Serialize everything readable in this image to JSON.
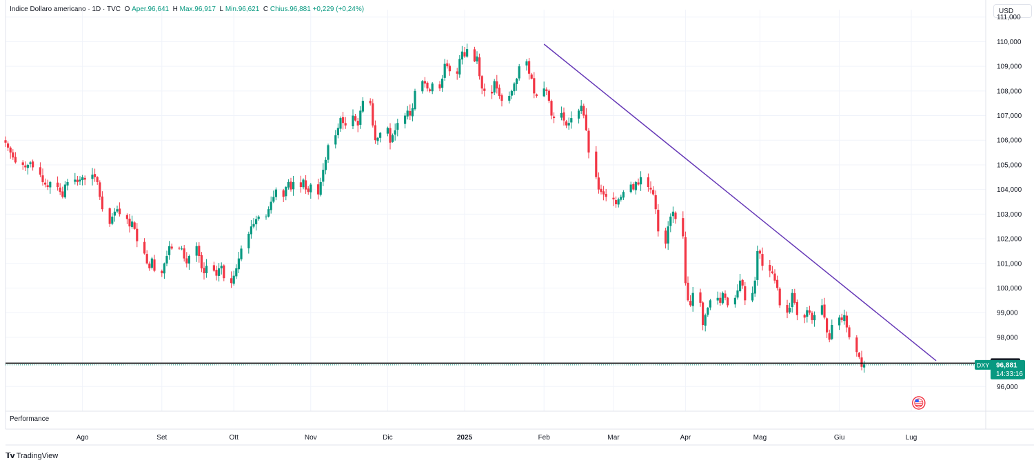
{
  "legend": {
    "symbol": "Indice Dollaro americano · 1D · TVC",
    "o_label": "O",
    "open": "Aper.96,641",
    "h_label": "H",
    "high": "Max.96,917",
    "l_label": "L",
    "low": "Min.96,621",
    "c_label": "C",
    "close": "Chius.96,881",
    "change": "+0,229 (+0,24%)"
  },
  "currency": "USD",
  "performance_label": "Performance",
  "branding": "TradingView",
  "price_badges": {
    "level_label": "97,000",
    "symbol_tag": "DXY",
    "last_price": "96,881",
    "countdown": "14:33:16"
  },
  "colors": {
    "up": "#089981",
    "down": "#f23645",
    "trendline": "#673ab7",
    "level_line": "#000000",
    "grid": "#f0f3fa"
  },
  "chart_data": {
    "type": "candlestick",
    "title": "Indice Dollaro americano",
    "interval": "1D",
    "source": "TVC",
    "ylim": [
      95.0,
      111.3
    ],
    "yticks": [
      "111,000",
      "110,000",
      "109,000",
      "108,000",
      "107,000",
      "106,000",
      "105,000",
      "104,000",
      "103,000",
      "102,000",
      "101,000",
      "100,000",
      "99,000",
      "98,000",
      "97,000",
      "96,000"
    ],
    "xticks": [
      {
        "label": "Ago",
        "date": "2024-08-01"
      },
      {
        "label": "Set",
        "date": "2024-09-02"
      },
      {
        "label": "Ott",
        "date": "2024-10-01"
      },
      {
        "label": "Nov",
        "date": "2024-11-01"
      },
      {
        "label": "Dic",
        "date": "2024-12-02"
      },
      {
        "label": "2025",
        "date": "2025-01-02"
      },
      {
        "label": "Feb",
        "date": "2025-02-03"
      },
      {
        "label": "Mar",
        "date": "2025-03-03"
      },
      {
        "label": "Apr",
        "date": "2025-04-01"
      },
      {
        "label": "Mag",
        "date": "2025-05-01"
      },
      {
        "label": "Giu",
        "date": "2025-06-02"
      },
      {
        "label": "Lug",
        "date": "2025-07-01"
      }
    ],
    "start_date": "2024-07-01",
    "end_date": "2025-07-31",
    "horizontal_line": 96.95,
    "trendline": {
      "start": {
        "date": "2025-02-03",
        "value": 109.9
      },
      "end": {
        "date": "2025-07-11",
        "value": 97.05
      }
    },
    "ohlc": {
      "open": 96.641,
      "high": 96.917,
      "low": 96.621,
      "close": 96.881
    },
    "closes": [
      105.9,
      105.7,
      105.5,
      105.3,
      105.1,
      105.0,
      104.9,
      105.0,
      105.1,
      104.9,
      104.6,
      104.3,
      104.2,
      104.1,
      104.3,
      104.1,
      103.9,
      103.7,
      104.2,
      104.3,
      104.4,
      104.3,
      104.4,
      104.5,
      104.4,
      104.6,
      104.5,
      104.3,
      103.7,
      103.2,
      102.6,
      102.9,
      103.1,
      103.2,
      103.0,
      102.8,
      102.5,
      102.7,
      102.4,
      101.9,
      101.4,
      101.0,
      100.8,
      101.2,
      100.7,
      100.6,
      101.0,
      101.3,
      101.7,
      101.6,
      101.6,
      101.6,
      101.2,
      101.0,
      101.3,
      101.7,
      101.3,
      100.8,
      100.6,
      100.9,
      100.7,
      100.5,
      100.8,
      100.9,
      100.4,
      100.2,
      100.5,
      100.8,
      101.2,
      101.6,
      102.2,
      102.5,
      102.6,
      102.8,
      102.9,
      102.9,
      103.2,
      103.5,
      103.7,
      104.0,
      103.7,
      104.1,
      104.3,
      104.0,
      104.3,
      104.1,
      104.4,
      104.0,
      103.9,
      104.2,
      103.8,
      104.3,
      104.8,
      105.2,
      105.8,
      106.2,
      106.5,
      106.9,
      106.7,
      106.6,
      107.0,
      106.8,
      106.6,
      107.2,
      107.6,
      107.5,
      106.6,
      106.0,
      106.1,
      106.3,
      106.5,
      105.9,
      106.2,
      106.4,
      106.7,
      107.0,
      107.2,
      107.0,
      107.3,
      108.0,
      108.4,
      108.3,
      108.1,
      108.0,
      108.3,
      108.1,
      108.5,
      109.1,
      109.0,
      108.8,
      108.7,
      109.3,
      109.6,
      109.4,
      109.7,
      109.2,
      109.4,
      108.6,
      108.1,
      108.0,
      107.9,
      108.4,
      108.1,
      107.8,
      107.6,
      107.8,
      108.0,
      108.3,
      108.5,
      109.0,
      109.2,
      108.7,
      108.5,
      107.9,
      107.8,
      108.1,
      108.0,
      107.6,
      107.0,
      106.9,
      107.1,
      106.8,
      106.6,
      106.7,
      106.9,
      107.2,
      107.4,
      107.0,
      106.4,
      105.5,
      104.5,
      104.0,
      103.9,
      103.8,
      103.7,
      103.6,
      103.4,
      103.6,
      103.7,
      103.9,
      104.2,
      104.0,
      104.3,
      104.2,
      104.5,
      104.1,
      104.0,
      103.8,
      103.2,
      102.3,
      101.8,
      102.5,
      102.9,
      103.1,
      102.8,
      102.1,
      100.2,
      99.5,
      99.3,
      99.8,
      99.4,
      98.5,
      98.9,
      99.2,
      99.5,
      99.6,
      99.4,
      99.8,
      99.6,
      99.3,
      99.6,
      99.9,
      100.3,
      100.1,
      99.5,
      99.8,
      100.3,
      101.5,
      101.4,
      100.9,
      100.7,
      100.6,
      100.3,
      100.0,
      99.3,
      99.0,
      99.2,
      99.8,
      99.4,
      98.9,
      98.8,
      99.1,
      99.0,
      98.7,
      98.9,
      99.3,
      98.8,
      98.2,
      97.9,
      98.5,
      98.8,
      98.7,
      98.9,
      98.4,
      98.0,
      97.4,
      97.2,
      96.8,
      96.9
    ]
  }
}
